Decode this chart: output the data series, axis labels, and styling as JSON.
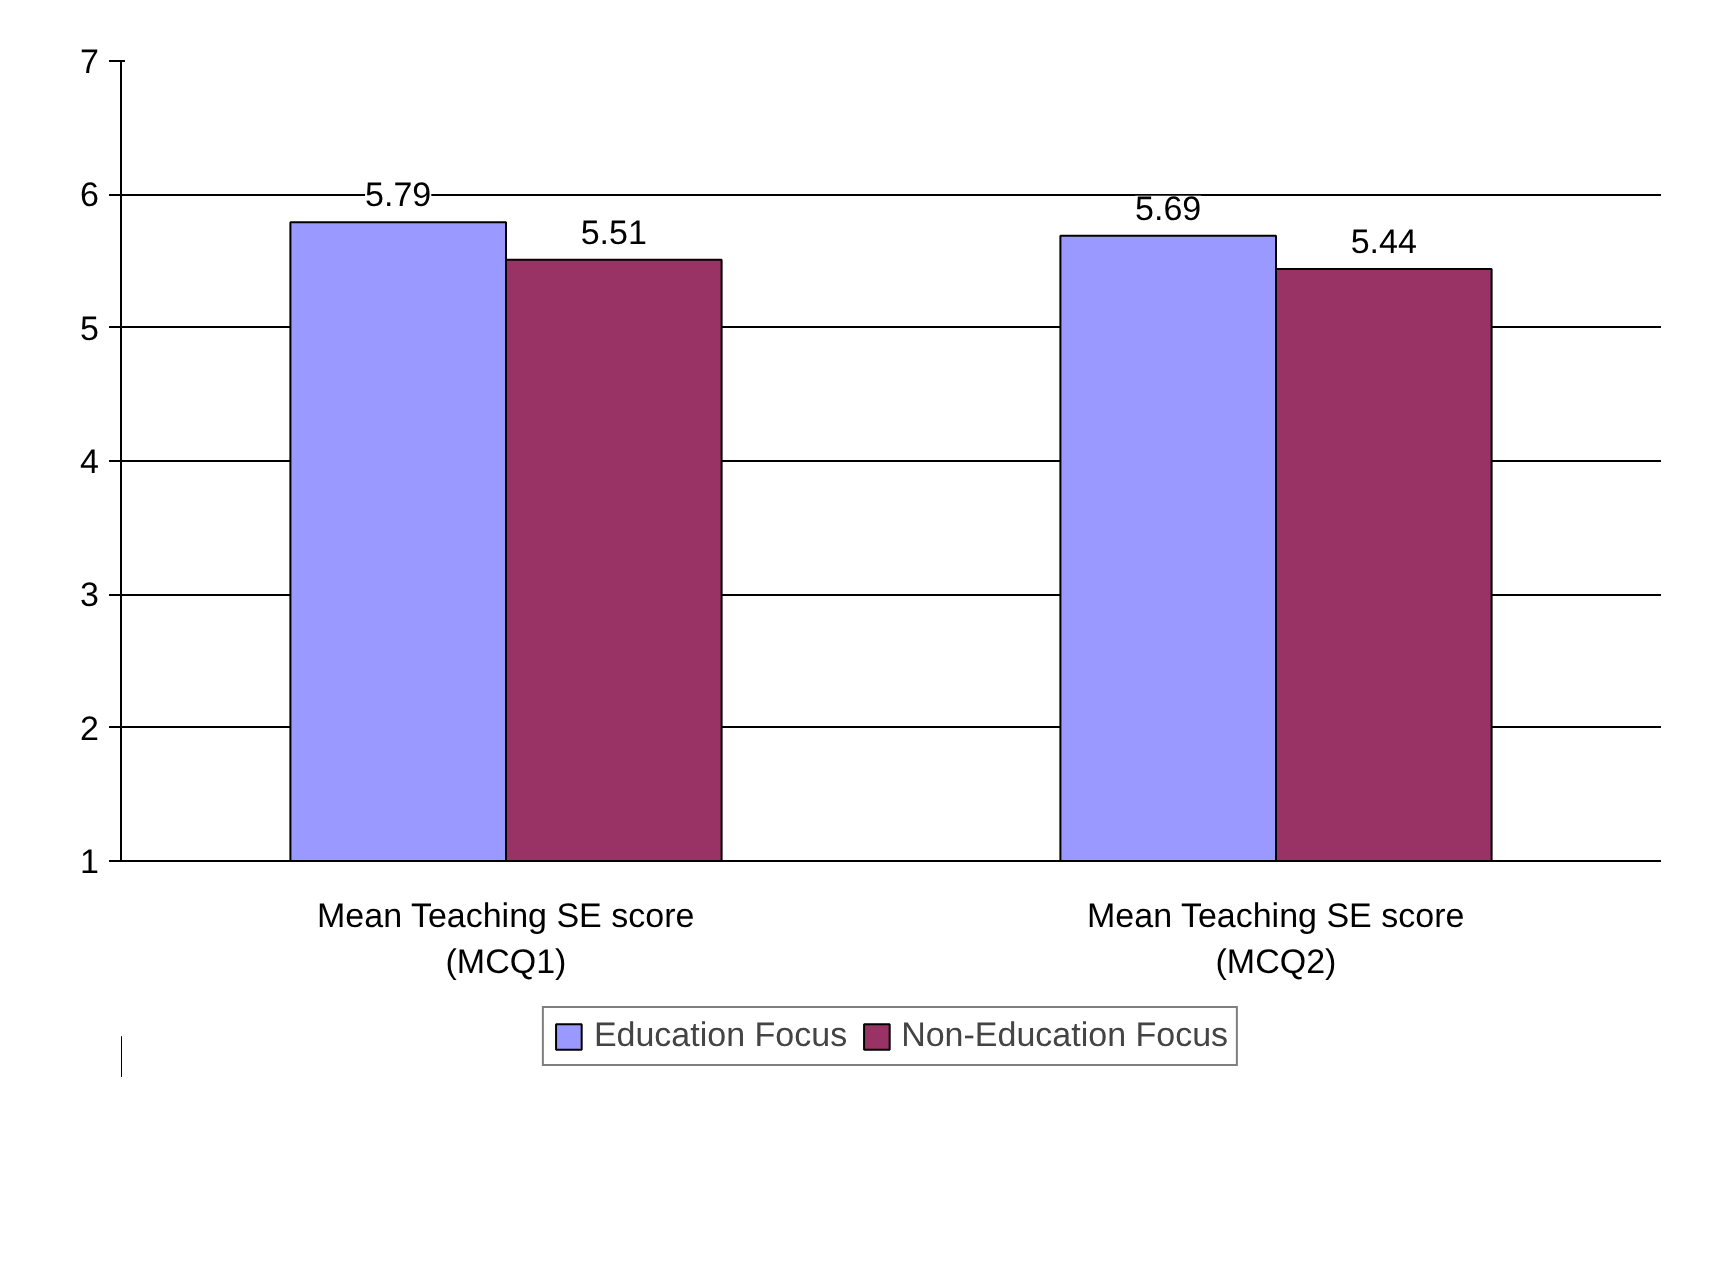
{
  "chart_data": {
    "type": "bar",
    "categories": [
      "Mean Teaching SE score\n(MCQ1)",
      "Mean Teaching SE score\n(MCQ2)"
    ],
    "series": [
      {
        "name": "Education Focus",
        "color": "#9999ff",
        "values": [
          5.79,
          5.69
        ]
      },
      {
        "name": "Non-Education Focus",
        "color": "#993366",
        "values": [
          5.51,
          5.44
        ]
      }
    ],
    "ylim": [
      1,
      7
    ],
    "yticks": [
      1,
      2,
      3,
      4,
      5,
      6,
      7
    ],
    "grid": "y",
    "legend": "bottom",
    "data_labels": true
  }
}
